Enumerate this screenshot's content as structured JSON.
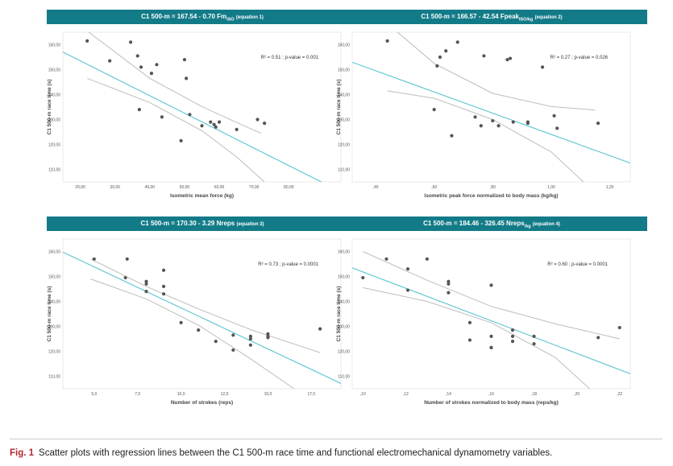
{
  "chart_data": [
    {
      "type": "scatter",
      "title": "C1 500-m = 167.54 - 0.70 Fm",
      "title_sub": "ISO",
      "title_eq": "(equation 1)",
      "xlabel": "Isometric mean force (kg)",
      "ylabel": "C1 500-m race time (s)",
      "xlim": [
        15.0,
        95.0
      ],
      "ylim": [
        105.0,
        165.0
      ],
      "xticks": [
        20,
        30,
        40,
        50,
        60,
        70,
        80
      ],
      "xtick_labels": [
        "20,00",
        "30,00",
        "40,00",
        "50,00",
        "60,00",
        "70,00",
        "80,00"
      ],
      "yticks": [
        110,
        120,
        130,
        140,
        150,
        160
      ],
      "ytick_labels": [
        "110,00",
        "120,00",
        "130,00",
        "140,00",
        "150,00",
        "160,00"
      ],
      "annotation": "R² = 0.51 ; p-value = 0.001",
      "regression": {
        "intercept": 167.54,
        "slope": -0.7
      },
      "ci_upper": {
        "x": [
          22,
          40,
          55,
          65,
          72
        ],
        "y": [
          165.5,
          146.5,
          135.2,
          128.8,
          124.5
        ]
      },
      "ci_lower": {
        "x": [
          22,
          40,
          55,
          65,
          73
        ],
        "y": [
          146.5,
          136.8,
          125.5,
          115.0,
          105.0
        ]
      },
      "x": [
        22.0,
        28.5,
        34.5,
        36.5,
        37.5,
        40.5,
        42.0,
        37.0,
        43.5,
        49.0,
        50.5,
        50.0,
        51.5,
        55.0,
        57.5,
        58.5,
        59.0,
        60.0,
        65.0,
        71.0,
        73.0
      ],
      "y": [
        161.5,
        153.5,
        161.0,
        155.5,
        151.0,
        148.5,
        152.0,
        134.0,
        131.0,
        121.5,
        146.5,
        154.0,
        132.0,
        127.5,
        129.0,
        128.0,
        127.0,
        129.0,
        126.0,
        130.0,
        128.5
      ]
    },
    {
      "type": "scatter",
      "title": "C1 500-m = 166.57 - 42.54 Fpeak",
      "title_sub": "ISO/kg",
      "title_eq": "(equation 2)",
      "xlabel": "Isometric peak force normalized to body mass (kg/kg)",
      "ylabel": "C1 500-m race time (s)",
      "xlim": [
        0.32,
        1.27
      ],
      "ylim": [
        105.0,
        165.0
      ],
      "xticks": [
        0.4,
        0.6,
        0.8,
        1.0,
        1.2
      ],
      "xtick_labels": [
        ",40",
        ",60",
        ",80",
        "1,00",
        "1,20"
      ],
      "yticks": [
        110,
        120,
        130,
        140,
        150,
        160
      ],
      "ytick_labels": [
        "110,00",
        "120,00",
        "130,00",
        "140,00",
        "150,00",
        "160,00"
      ],
      "annotation": "R² = 0.27 ; p-value = 0.026",
      "regression": {
        "intercept": 166.57,
        "slope": -42.54
      },
      "ci_upper": {
        "x": [
          0.47,
          0.6,
          0.8,
          1.0,
          1.15
        ],
        "y": [
          165.5,
          152.5,
          140.5,
          135.2,
          133.8
        ]
      },
      "ci_lower": {
        "x": [
          0.44,
          0.6,
          0.8,
          1.0,
          1.11
        ],
        "y": [
          141.5,
          138.5,
          130.0,
          117.0,
          105.0
        ]
      },
      "x": [
        0.44,
        0.62,
        0.68,
        0.61,
        0.64,
        0.77,
        0.85,
        0.86,
        0.97,
        0.6,
        0.66,
        0.74,
        0.76,
        0.8,
        0.82,
        0.87,
        0.92,
        0.92,
        1.01,
        1.02,
        1.16
      ],
      "y": [
        161.5,
        155.0,
        161.0,
        151.5,
        157.5,
        155.5,
        154.0,
        154.5,
        151.0,
        134.0,
        123.5,
        131.0,
        127.5,
        129.5,
        127.5,
        129.0,
        128.5,
        129.0,
        131.5,
        126.5,
        128.5
      ]
    },
    {
      "type": "scatter",
      "title": "C1 500-m = 170.30 - 3.29 Nreps",
      "title_sub": "",
      "title_eq": "(equation 3)",
      "xlabel": "Number of strokes (reps)",
      "ylabel": "C1 500-m race time (s)",
      "xlim": [
        3.2,
        19.2
      ],
      "ylim": [
        105.0,
        165.0
      ],
      "xticks": [
        5,
        7.5,
        10,
        12.5,
        15,
        17.5
      ],
      "xtick_labels": [
        "5,0",
        "7,5",
        "10,0",
        "12,5",
        "15,0",
        "17,5"
      ],
      "yticks": [
        110,
        120,
        130,
        140,
        150,
        160
      ],
      "ytick_labels": [
        "110,00",
        "120,00",
        "130,00",
        "140,00",
        "150,00",
        "160,00"
      ],
      "annotation": "R² = 0.73 ; p-value = 0.0001",
      "regression": {
        "intercept": 170.3,
        "slope": -3.29
      },
      "ci_upper": {
        "x": [
          4.8,
          8,
          11,
          14,
          18
        ],
        "y": [
          157.0,
          146.0,
          137.0,
          128.7,
          119.5
        ]
      },
      "ci_lower": {
        "x": [
          4.8,
          8,
          11,
          14,
          16.5
        ],
        "y": [
          149.0,
          141.0,
          130.5,
          117.0,
          105.0
        ]
      },
      "x": [
        5.0,
        6.9,
        6.8,
        8.0,
        8.0,
        8.0,
        9.0,
        9.0,
        9.0,
        10.0,
        11.0,
        12.0,
        13.0,
        13.0,
        14.0,
        14.0,
        14.0,
        15.0,
        15.0,
        15.0,
        18.0
      ],
      "y": [
        157.0,
        157.0,
        149.5,
        148.0,
        147.0,
        144.0,
        152.5,
        146.0,
        143.0,
        131.5,
        128.5,
        124.0,
        126.5,
        120.5,
        126.0,
        125.0,
        122.5,
        126.0,
        127.0,
        125.5,
        129.0
      ]
    },
    {
      "type": "scatter",
      "title": "C1 500-m = 184.46 - 326.45 Nreps",
      "title_sub": "/kg",
      "title_eq": "(equation 4)",
      "xlabel": "Number of strokes normalized to body mass (reps/kg)",
      "ylabel": "C1 500-m race time (s)",
      "xlim": [
        0.095,
        0.225
      ],
      "ylim": [
        105.0,
        165.0
      ],
      "xticks": [
        0.1,
        0.12,
        0.14,
        0.16,
        0.18,
        0.2,
        0.22
      ],
      "xtick_labels": [
        ",10",
        ",12",
        ",14",
        ",16",
        ",18",
        ",20",
        ",22"
      ],
      "yticks": [
        110,
        120,
        130,
        140,
        150,
        160
      ],
      "ytick_labels": [
        "110,00",
        "120,00",
        "130,00",
        "140,00",
        "150,00",
        "160,00"
      ],
      "annotation": "R² = 0.60 ; p-value = 0.0001",
      "regression": {
        "intercept": 184.46,
        "slope": -326.45
      },
      "ci_upper": {
        "x": [
          0.1,
          0.13,
          0.16,
          0.19,
          0.22
        ],
        "y": [
          160.0,
          148.5,
          138.0,
          131.0,
          125.0
        ]
      },
      "ci_lower": {
        "x": [
          0.1,
          0.13,
          0.16,
          0.19,
          0.206
        ],
        "y": [
          145.5,
          140.0,
          131.5,
          117.5,
          105.0
        ]
      },
      "x": [
        0.1,
        0.111,
        0.121,
        0.121,
        0.13,
        0.14,
        0.14,
        0.14,
        0.15,
        0.15,
        0.16,
        0.16,
        0.16,
        0.16,
        0.17,
        0.17,
        0.17,
        0.18,
        0.18,
        0.21,
        0.22
      ],
      "y": [
        149.5,
        157.0,
        153.0,
        144.5,
        157.0,
        148.0,
        147.0,
        143.5,
        131.5,
        124.5,
        146.5,
        126.0,
        121.5,
        121.5,
        128.5,
        126.0,
        124.0,
        126.0,
        123.0,
        125.5,
        129.5
      ]
    }
  ],
  "caption": {
    "label": "Fig. 1",
    "text": "Scatter plots with regression lines between the C1 500-m race time and functional electromechanical dynamometry variables."
  },
  "colors": {
    "banner": "#137b88",
    "regression": "#5bc4cf",
    "ci": "#bdbdbd",
    "point": "#555555",
    "caption_label": "#b3262e"
  }
}
